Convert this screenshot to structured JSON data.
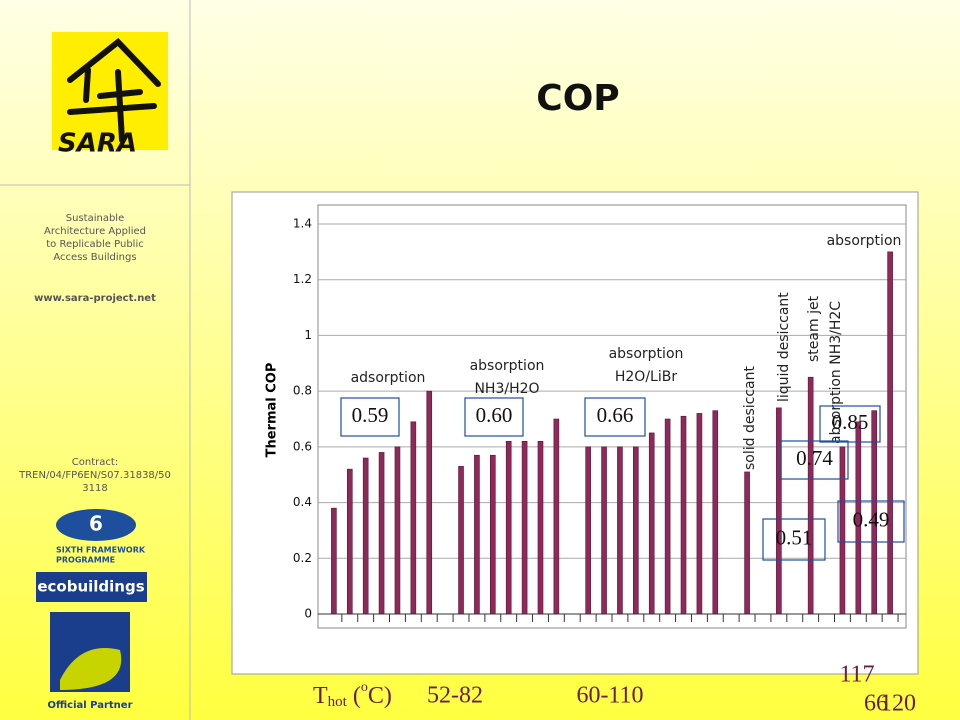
{
  "slide": {
    "brand": "SARA",
    "description": [
      "Sustainable",
      "Architecture Applied",
      "to Replicable Public",
      "Access Buildings"
    ],
    "website": "www.sara-project.net",
    "contract": [
      "Contract:",
      "TREN/04/FP6EN/S07.31838/50",
      "3118"
    ],
    "programme": [
      "SIXTH FRAMEWORK",
      "PROGRAMME"
    ],
    "eco": "ecobuildings",
    "partner": "Official Partner"
  },
  "chart_data": {
    "type": "bar",
    "title": "COP",
    "ylabel": "Thermal COP",
    "color": "#8e2a5a",
    "categories": [
      null,
      null,
      null,
      null,
      null,
      null,
      null,
      null,
      null,
      null,
      null,
      null,
      null,
      null,
      null,
      null,
      null,
      null,
      null,
      null,
      null,
      null,
      null,
      null,
      null,
      null,
      null,
      null,
      null,
      null,
      null,
      null,
      null,
      null,
      null,
      null
    ],
    "values": [
      0.38,
      0.52,
      0.56,
      0.58,
      0.6,
      0.69,
      0.8,
      null,
      0.53,
      0.57,
      0.57,
      0.62,
      0.62,
      0.62,
      0.7,
      null,
      0.6,
      0.6,
      0.6,
      0.6,
      0.65,
      0.7,
      0.71,
      0.72,
      0.73,
      null,
      0.51,
      null,
      0.74,
      null,
      0.85,
      null,
      0.6,
      0.69,
      0.73,
      1.3
    ],
    "ylim": [
      0,
      1.4
    ],
    "yticks": [
      0,
      0.2,
      0.4,
      0.6,
      0.8,
      1,
      1.2,
      1.4
    ],
    "grid": true,
    "annotations": [
      "adsorption",
      "absorption",
      "NH3/H2O",
      "absorption",
      "H2O/LiBr",
      "solid desiccant",
      "liquid desiccant",
      "steam jet",
      "absorption NH3/H2C",
      "absorption"
    ],
    "callouts": [
      "0.59",
      "0.60",
      "0.66",
      "0.85",
      "0.74",
      "0.51",
      "0.49"
    ],
    "xlabel": {
      "main": "T",
      "sub": "hot",
      "open": " (",
      "sup": "o",
      "close": "C)"
    },
    "ranges": [
      "52-82",
      "60-110",
      "117",
      "66",
      "120"
    ]
  }
}
